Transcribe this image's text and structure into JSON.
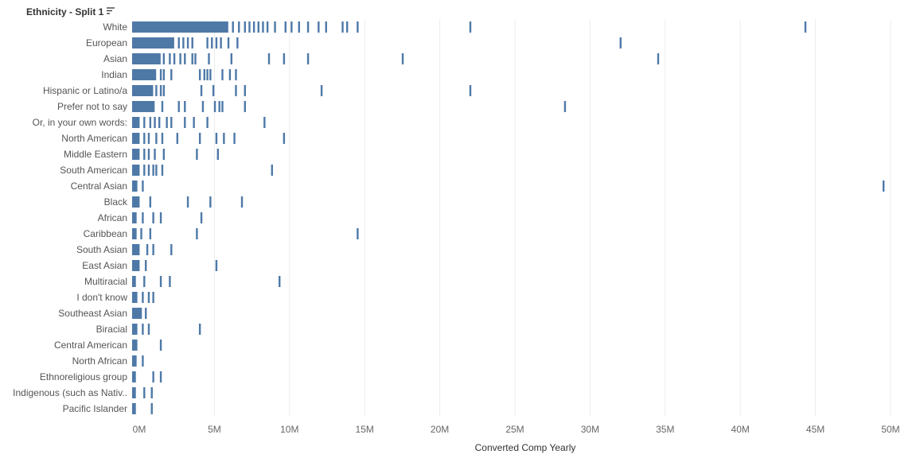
{
  "chart_data": {
    "type": "bar",
    "row_header": "Ethnicity - Split 1",
    "xlabel": "Converted Comp Yearly",
    "xlim": [
      0,
      52000000
    ],
    "x_ticks": [
      0,
      5000000,
      10000000,
      15000000,
      20000000,
      25000000,
      30000000,
      35000000,
      40000000,
      45000000,
      50000000
    ],
    "x_tick_labels": [
      "0M",
      "5M",
      "10M",
      "15M",
      "20M",
      "25M",
      "30M",
      "35M",
      "40M",
      "45M",
      "50M"
    ],
    "grid": "vertical",
    "bar_color": "#4e79a7",
    "categories": [
      {
        "name": "White",
        "solid_to": 6400000,
        "marks": [
          6700000,
          7100000,
          7500000,
          7800000,
          8100000,
          8400000,
          8700000,
          9000000,
          9500000,
          10200000,
          10600000,
          11100000,
          11700000,
          12400000,
          12900000,
          14000000,
          14300000,
          15000000,
          22500000,
          44800000
        ]
      },
      {
        "name": "European",
        "solid_to": 2800000,
        "marks": [
          3100000,
          3400000,
          3700000,
          4000000,
          5000000,
          5300000,
          5600000,
          5900000,
          6400000,
          7000000,
          32500000
        ]
      },
      {
        "name": "Asian",
        "solid_to": 1900000,
        "marks": [
          2100000,
          2500000,
          2800000,
          3200000,
          3500000,
          4000000,
          4200000,
          5100000,
          6600000,
          9100000,
          10100000,
          11700000,
          18000000,
          35000000
        ]
      },
      {
        "name": "Indian",
        "solid_to": 1600000,
        "marks": [
          1900000,
          2100000,
          2600000,
          4500000,
          4800000,
          5000000,
          5200000,
          6000000,
          6500000,
          6900000
        ]
      },
      {
        "name": "Hispanic or Latino/a",
        "solid_to": 1400000,
        "marks": [
          1600000,
          1900000,
          2100000,
          4600000,
          5400000,
          6900000,
          7500000,
          12600000,
          22500000
        ]
      },
      {
        "name": "Prefer not to say",
        "solid_to": 1500000,
        "marks": [
          2000000,
          3100000,
          3500000,
          4700000,
          5500000,
          5800000,
          6000000,
          7500000,
          28800000
        ]
      },
      {
        "name": "Or, in your own words:",
        "solid_to": 500000,
        "marks": [
          800000,
          1200000,
          1500000,
          1800000,
          2300000,
          2600000,
          3500000,
          4100000,
          5000000,
          8800000
        ]
      },
      {
        "name": "North American",
        "solid_to": 500000,
        "marks": [
          800000,
          1100000,
          1600000,
          2000000,
          3000000,
          4500000,
          5600000,
          6100000,
          6800000,
          10100000
        ]
      },
      {
        "name": "Middle Eastern",
        "solid_to": 500000,
        "marks": [
          800000,
          1100000,
          1500000,
          2100000,
          4300000,
          5700000
        ]
      },
      {
        "name": "South American",
        "solid_to": 500000,
        "marks": [
          800000,
          1100000,
          1400000,
          1600000,
          2000000,
          9300000
        ]
      },
      {
        "name": "Central Asian",
        "solid_to": 350000,
        "marks": [
          700000,
          50000000
        ]
      },
      {
        "name": "Black",
        "solid_to": 500000,
        "marks": [
          1200000,
          3700000,
          5200000,
          7300000
        ]
      },
      {
        "name": "African",
        "solid_to": 300000,
        "marks": [
          700000,
          1400000,
          1900000,
          4600000
        ]
      },
      {
        "name": "Caribbean",
        "solid_to": 300000,
        "marks": [
          600000,
          1200000,
          4300000,
          15000000
        ]
      },
      {
        "name": "South Asian",
        "solid_to": 500000,
        "marks": [
          1000000,
          1400000,
          2600000
        ]
      },
      {
        "name": "East Asian",
        "solid_to": 500000,
        "marks": [
          900000,
          5600000
        ]
      },
      {
        "name": "Multiracial",
        "solid_to": 250000,
        "marks": [
          800000,
          1900000,
          2500000,
          9800000
        ]
      },
      {
        "name": "I don't know",
        "solid_to": 350000,
        "marks": [
          700000,
          1100000,
          1400000
        ]
      },
      {
        "name": "Southeast Asian",
        "solid_to": 650000,
        "marks": [
          900000
        ]
      },
      {
        "name": "Biracial",
        "solid_to": 350000,
        "marks": [
          700000,
          1100000,
          4500000
        ]
      },
      {
        "name": "Central American",
        "solid_to": 350000,
        "marks": [
          1900000
        ]
      },
      {
        "name": "North African",
        "solid_to": 300000,
        "marks": [
          700000
        ]
      },
      {
        "name": "Ethnoreligious group",
        "solid_to": 250000,
        "marks": [
          1400000,
          1900000
        ]
      },
      {
        "name": "Indigenous (such as Nativ..",
        "solid_to": 250000,
        "marks": [
          800000,
          1300000
        ]
      },
      {
        "name": "Pacific Islander",
        "solid_to": 250000,
        "marks": [
          1300000
        ]
      }
    ]
  }
}
